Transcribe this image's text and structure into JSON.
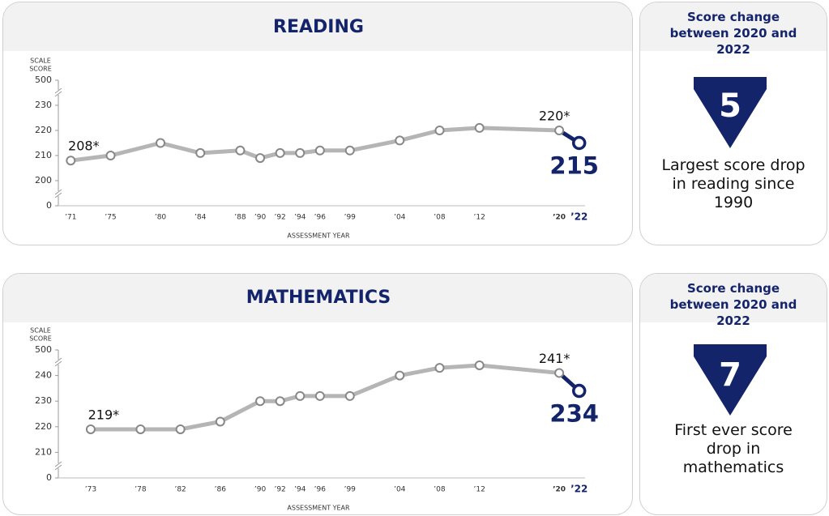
{
  "chart_data": [
    {
      "type": "line",
      "title": "READING",
      "y_label": [
        "SCALE",
        "SCORE"
      ],
      "x_label": "ASSESSMENT YEAR",
      "x": [
        1971,
        1975,
        1980,
        1984,
        1988,
        1990,
        1992,
        1994,
        1996,
        1999,
        2004,
        2008,
        2012,
        2020,
        2022
      ],
      "xticks": [
        {
          "value": 1971,
          "label": "’71"
        },
        {
          "value": 1975,
          "label": "’75"
        },
        {
          "value": 1980,
          "label": "’80"
        },
        {
          "value": 1984,
          "label": "’84"
        },
        {
          "value": 1988,
          "label": "’88"
        },
        {
          "value": 1990,
          "label": "’90"
        },
        {
          "value": 1992,
          "label": "’92"
        },
        {
          "value": 1994,
          "label": "’94"
        },
        {
          "value": 1996,
          "label": "’96"
        },
        {
          "value": 1999,
          "label": "’99"
        },
        {
          "value": 2004,
          "label": "’04"
        },
        {
          "value": 2008,
          "label": "’08"
        },
        {
          "value": 2012,
          "label": "’12"
        },
        {
          "value": 2020,
          "label": "’20"
        },
        {
          "value": 2022,
          "label": "’22"
        }
      ],
      "xlim": [
        1970,
        2023
      ],
      "ylim": [
        190,
        240
      ],
      "yticks": [
        0,
        200,
        210,
        220,
        230,
        500
      ],
      "y_break": true,
      "series": [
        {
          "color": "#b5b5b5",
          "highlight_color": "#14246b",
          "values": [
            208,
            210,
            215,
            211,
            212,
            209,
            211,
            211,
            212,
            212,
            216,
            220,
            221,
            220,
            215
          ],
          "value_labels": [
            "208*",
            null,
            null,
            null,
            null,
            null,
            null,
            null,
            null,
            null,
            null,
            null,
            null,
            "220*",
            "215"
          ]
        }
      ]
    },
    {
      "type": "line",
      "title": "MATHEMATICS",
      "y_label": [
        "SCALE",
        "SCORE"
      ],
      "x_label": "ASSESSMENT YEAR",
      "x": [
        1973,
        1978,
        1982,
        1986,
        1990,
        1992,
        1994,
        1996,
        1999,
        2004,
        2008,
        2012,
        2020,
        2022
      ],
      "xticks": [
        {
          "value": 1973,
          "label": "’73"
        },
        {
          "value": 1978,
          "label": "’78"
        },
        {
          "value": 1982,
          "label": "’82"
        },
        {
          "value": 1986,
          "label": "’86"
        },
        {
          "value": 1990,
          "label": "’90"
        },
        {
          "value": 1992,
          "label": "’92"
        },
        {
          "value": 1994,
          "label": "’94"
        },
        {
          "value": 1996,
          "label": "’96"
        },
        {
          "value": 1999,
          "label": "’99"
        },
        {
          "value": 2004,
          "label": "’04"
        },
        {
          "value": 2008,
          "label": "’08"
        },
        {
          "value": 2012,
          "label": "’12"
        },
        {
          "value": 2020,
          "label": "’20"
        },
        {
          "value": 2022,
          "label": "’22"
        }
      ],
      "xlim": [
        1970,
        2023
      ],
      "ylim": [
        200,
        250
      ],
      "yticks": [
        0,
        210,
        220,
        230,
        240,
        500
      ],
      "y_break": true,
      "series": [
        {
          "color": "#b5b5b5",
          "highlight_color": "#14246b",
          "values": [
            219,
            219,
            219,
            222,
            230,
            230,
            232,
            232,
            232,
            240,
            243,
            244,
            241,
            234
          ],
          "value_labels": [
            "219*",
            null,
            null,
            null,
            null,
            null,
            null,
            null,
            null,
            null,
            null,
            null,
            "241*",
            "234"
          ]
        }
      ]
    }
  ],
  "panels": [
    {
      "title": "Score change between 2020 and 2022",
      "value": 5,
      "caption": "Largest score drop in reading since 1990"
    },
    {
      "title": "Score change between 2020 and 2022",
      "value": 7,
      "caption": "First ever score drop in mathematics"
    }
  ]
}
